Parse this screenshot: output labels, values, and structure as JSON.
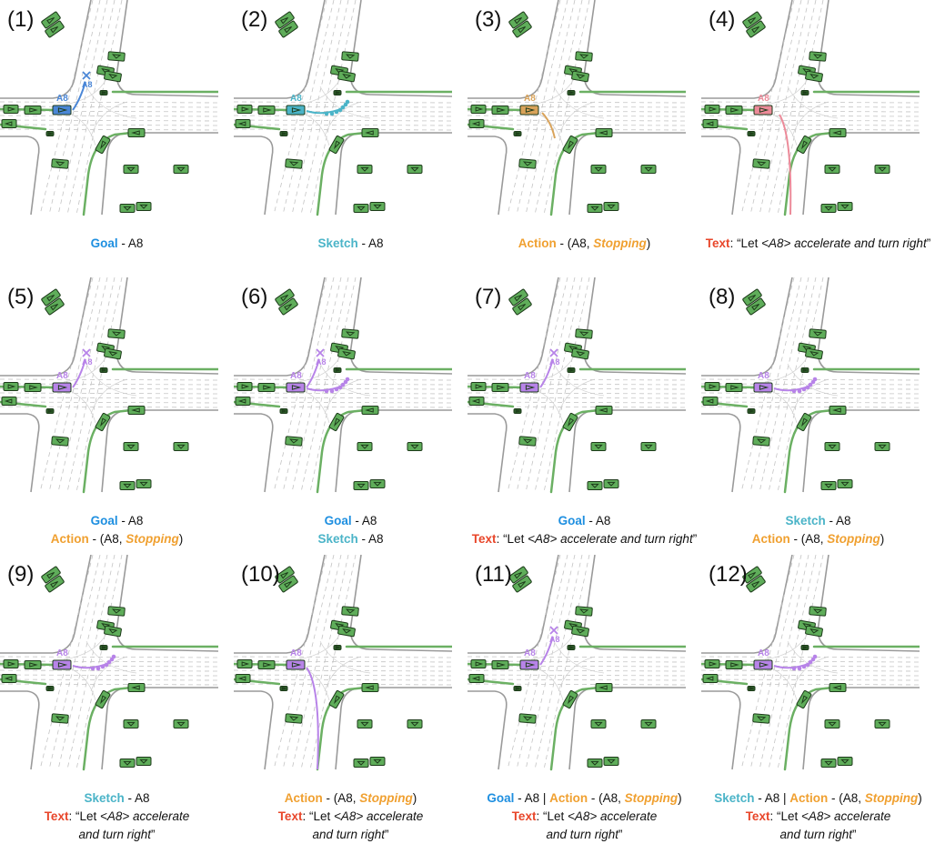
{
  "agent_label": "A8",
  "colors": {
    "goal": "#4a86d6",
    "sketch": "#4bb4c8",
    "action": "#d9a35a",
    "text": "#ec8a99",
    "multi": "#b783e8",
    "vehicle": "#5fad5a"
  },
  "panels": [
    {
      "num": "(1)",
      "mode": "goal",
      "lines": [
        [
          {
            "t": "Goal",
            "s": "goal"
          },
          {
            "t": " - "
          },
          {
            "t": "A8"
          }
        ]
      ]
    },
    {
      "num": "(2)",
      "mode": "sketch",
      "lines": [
        [
          {
            "t": "Sketch",
            "s": "sketch"
          },
          {
            "t": " - "
          },
          {
            "t": "A8"
          }
        ]
      ]
    },
    {
      "num": "(3)",
      "mode": "action",
      "lines": [
        [
          {
            "t": "Action",
            "s": "action"
          },
          {
            "t": " - (A8, "
          },
          {
            "t": "Stopping",
            "s": "stop"
          },
          {
            "t": ")"
          }
        ]
      ]
    },
    {
      "num": "(4)",
      "mode": "text",
      "lines": [
        [
          {
            "t": "Text",
            "s": "text"
          },
          {
            "t": ": “Let "
          },
          {
            "t": "<A8> accelerate and turn right",
            "s": "it"
          },
          {
            "t": "”"
          }
        ]
      ]
    },
    {
      "num": "(5)",
      "mode": "goal-action",
      "lines": [
        [
          {
            "t": "Goal",
            "s": "goal"
          },
          {
            "t": " -  A8"
          }
        ],
        [
          {
            "t": "Action",
            "s": "action"
          },
          {
            "t": " - (A8, "
          },
          {
            "t": "Stopping",
            "s": "stop"
          },
          {
            "t": ")"
          }
        ]
      ]
    },
    {
      "num": "(6)",
      "mode": "goal-sketch",
      "lines": [
        [
          {
            "t": "Goal",
            "s": "goal"
          },
          {
            "t": " -  A8"
          }
        ],
        [
          {
            "t": "Sketch",
            "s": "sketch"
          },
          {
            "t": " - A8"
          }
        ]
      ]
    },
    {
      "num": "(7)",
      "mode": "goal-text",
      "lines": [
        [
          {
            "t": "Goal",
            "s": "goal"
          },
          {
            "t": " -  A8"
          }
        ],
        [
          {
            "t": "Text",
            "s": "text"
          },
          {
            "t": ": “Let "
          },
          {
            "t": "<A8> accelerate and turn right",
            "s": "it"
          },
          {
            "t": "”"
          }
        ]
      ]
    },
    {
      "num": "(8)",
      "mode": "sketch-action",
      "lines": [
        [
          {
            "t": "Sketch",
            "s": "sketch"
          },
          {
            "t": " - A8"
          }
        ],
        [
          {
            "t": "Action",
            "s": "action"
          },
          {
            "t": " - (A8, "
          },
          {
            "t": "Stopping",
            "s": "stop"
          },
          {
            "t": ")"
          }
        ]
      ]
    },
    {
      "num": "(9)",
      "mode": "sketch-text",
      "lines": [
        [
          {
            "t": "Sketch",
            "s": "sketch"
          },
          {
            "t": " - A8"
          }
        ],
        [
          {
            "t": "Text",
            "s": "text"
          },
          {
            "t": ": “Let "
          },
          {
            "t": "<A8> accelerate",
            "s": "it"
          }
        ],
        [
          {
            "t": "and turn right",
            "s": "it"
          },
          {
            "t": "”"
          }
        ]
      ]
    },
    {
      "num": "(10)",
      "mode": "action-text",
      "lines": [
        [
          {
            "t": "Action",
            "s": "action"
          },
          {
            "t": " - (A8, "
          },
          {
            "t": "Stopping",
            "s": "stop"
          },
          {
            "t": ")"
          }
        ],
        [
          {
            "t": "Text",
            "s": "text"
          },
          {
            "t": ": “Let "
          },
          {
            "t": "<A8> accelerate",
            "s": "it"
          }
        ],
        [
          {
            "t": "and turn right",
            "s": "it"
          },
          {
            "t": "”"
          }
        ]
      ]
    },
    {
      "num": "(11)",
      "mode": "goal-action-text",
      "lines": [
        [
          {
            "t": "Goal",
            "s": "goal"
          },
          {
            "t": " -  A8 | "
          },
          {
            "t": "Action",
            "s": "action"
          },
          {
            "t": " - (A8, "
          },
          {
            "t": "Stopping",
            "s": "stop"
          },
          {
            "t": ")"
          }
        ],
        [
          {
            "t": "Text",
            "s": "text"
          },
          {
            "t": ": “Let "
          },
          {
            "t": "<A8> accelerate",
            "s": "it"
          }
        ],
        [
          {
            "t": "and turn right",
            "s": "it"
          },
          {
            "t": "”"
          }
        ]
      ]
    },
    {
      "num": "(12)",
      "mode": "sketch-action-text",
      "lines": [
        [
          {
            "t": "Sketch",
            "s": "sketch"
          },
          {
            "t": " - A8 | "
          },
          {
            "t": "Action",
            "s": "action"
          },
          {
            "t": " - (A8, "
          },
          {
            "t": "Stopping",
            "s": "stop"
          },
          {
            "t": ")"
          }
        ],
        [
          {
            "t": "Text",
            "s": "text"
          },
          {
            "t": ": “Let "
          },
          {
            "t": "<A8> accelerate",
            "s": "it"
          }
        ],
        [
          {
            "t": "and turn right",
            "s": "it"
          },
          {
            "t": "”"
          }
        ]
      ]
    }
  ]
}
